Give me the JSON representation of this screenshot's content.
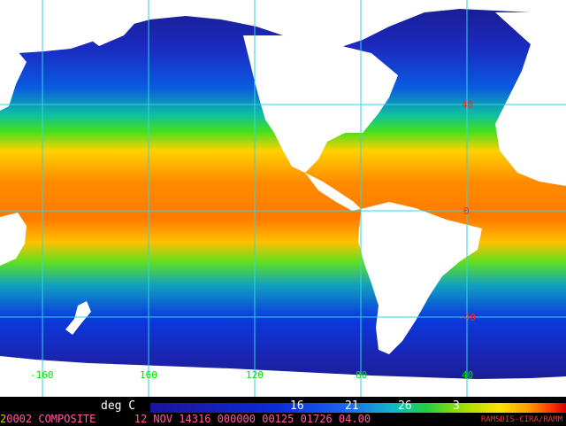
{
  "map": {
    "colors": {
      "land": "#ffffff",
      "cold": "#1a1a9a",
      "cool": "#0a2bd6",
      "mid": "#10a0e0",
      "green": "#20d040",
      "warm": "#ffd000",
      "hot": "#ff7a00",
      "gridline": "#33d6e0"
    },
    "lon_labels": [
      "-160",
      "160",
      "120",
      "80",
      "40"
    ],
    "lat_labels": [
      "40",
      "0",
      "-40"
    ]
  },
  "colorbar": {
    "unit": "deg C",
    "ticks": [
      "16",
      "21",
      "26",
      "3"
    ]
  },
  "footer": {
    "prefix": "2",
    "text": "0002 COMPOSITE      12 NOV 14316 000000 00125 01726 04.00",
    "credit": "RAMSDIS-CIRA/RAMM"
  }
}
